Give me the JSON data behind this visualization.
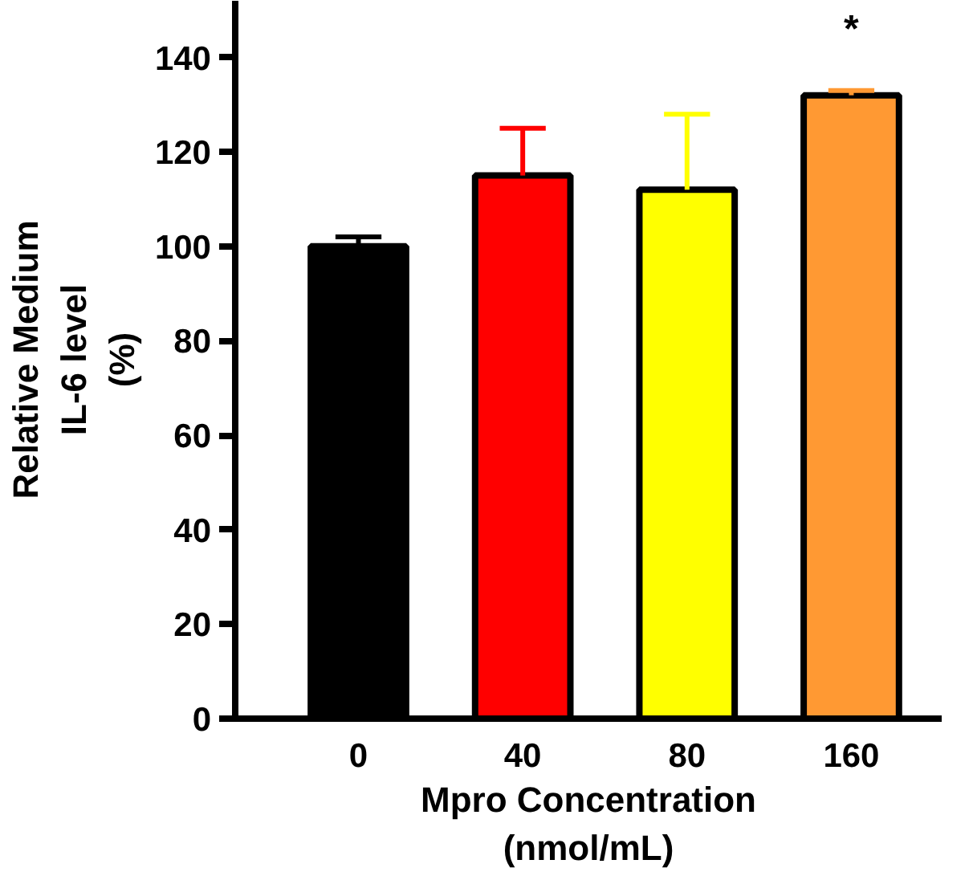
{
  "chart_data": {
    "type": "bar",
    "xlabel": "Mpro Concentration\n(nmol/mL)",
    "ylabel": "Relative Medium\nIL-6 level\n(%)",
    "categories": [
      "0",
      "40",
      "80",
      "160"
    ],
    "values": [
      100,
      115,
      112,
      132
    ],
    "colors": [
      "#000000",
      "#ff0000",
      "#ffff00",
      "#ff9933"
    ],
    "errors": [
      [
        100,
        102
      ],
      [
        115,
        125
      ],
      [
        112,
        128
      ],
      [
        132,
        133
      ]
    ],
    "ylim": [
      0,
      152
    ],
    "yticks": [
      0,
      20,
      40,
      60,
      80,
      100,
      120,
      140
    ],
    "grid": false,
    "annotations": [
      "*"
    ]
  }
}
